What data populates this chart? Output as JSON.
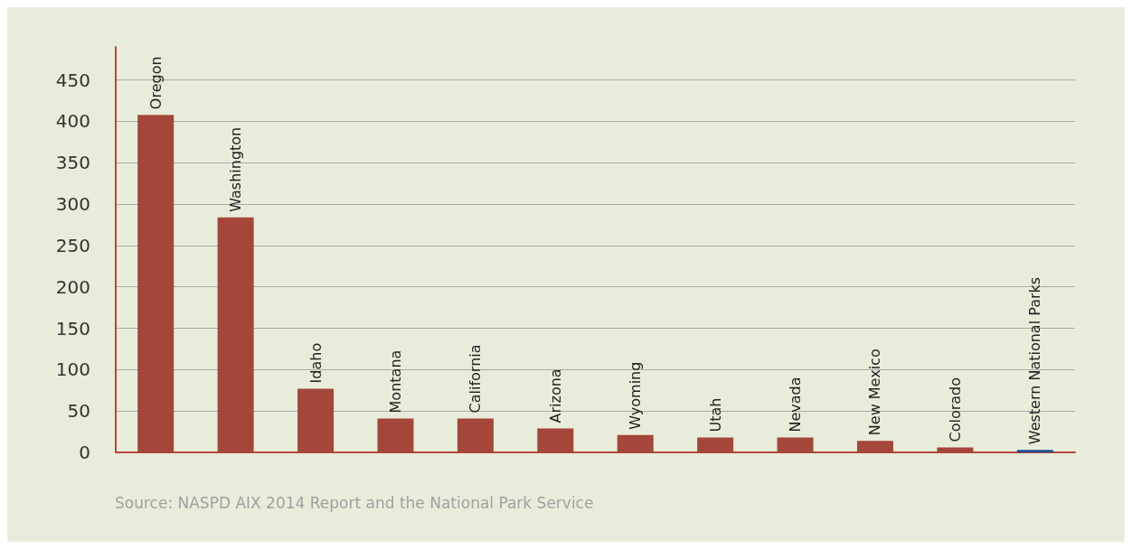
{
  "chart_data": {
    "type": "bar",
    "categories": [
      "Oregon",
      "Washington",
      "Idaho",
      "Montana",
      "California",
      "Arizona",
      "Wyoming",
      "Utah",
      "Nevada",
      "New Mexico",
      "Colorado",
      "Western National Parks"
    ],
    "values": [
      408,
      284,
      77,
      41,
      41,
      29,
      21,
      18,
      18,
      14,
      6,
      3
    ],
    "colors": [
      "#a5463a",
      "#a5463a",
      "#a5463a",
      "#a5463a",
      "#a5463a",
      "#a5463a",
      "#a5463a",
      "#a5463a",
      "#a5463a",
      "#a5463a",
      "#a5463a",
      "#1f4e96"
    ],
    "ylim": [
      0,
      490
    ],
    "yticks": [
      0,
      50,
      100,
      150,
      200,
      250,
      300,
      350,
      400,
      450
    ],
    "grid": "y",
    "annotations": [
      "Source: NASPD AIX 2014 Report and the National Park Service"
    ]
  }
}
